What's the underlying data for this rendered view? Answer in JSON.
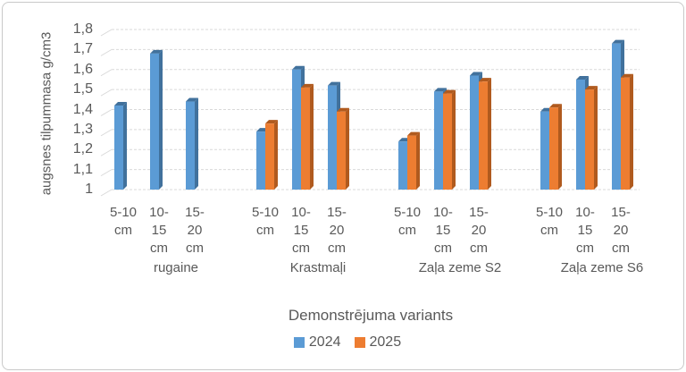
{
  "chart_data": {
    "type": "bar",
    "title": "",
    "ylabel": "augsnes tilpummasa g/cm3",
    "xlabel": "Demonstrējuma variants",
    "ylim": [
      1,
      1.8
    ],
    "ytick_step": 0.1,
    "decimal_separator": ",",
    "grid": true,
    "legend_position": "bottom",
    "text_color": "#595959",
    "gridline_color": "#D9D9D9",
    "groups": [
      "rugaine",
      "Krastmaļi",
      "Zaļa zeme S2",
      "Zaļa zeme S6"
    ],
    "xtick_lines": [
      [
        "5-10",
        "cm"
      ],
      [
        "10-",
        "15",
        "cm"
      ],
      [
        "15-",
        "20",
        "cm"
      ]
    ],
    "series": [
      {
        "name": "2024",
        "color": "#5B9BD5",
        "shade_color": "#41719C",
        "values": [
          [
            1.42,
            1.68,
            1.44
          ],
          [
            1.29,
            1.6,
            1.52
          ],
          [
            1.24,
            1.49,
            1.57
          ],
          [
            1.39,
            1.55,
            1.73
          ]
        ]
      },
      {
        "name": "2025",
        "color": "#ED7D31",
        "shade_color": "#B05A1E",
        "values": [
          [
            null,
            null,
            null
          ],
          [
            1.33,
            1.51,
            1.39
          ],
          [
            1.27,
            1.48,
            1.54
          ],
          [
            1.41,
            1.5,
            1.56
          ]
        ]
      }
    ]
  }
}
